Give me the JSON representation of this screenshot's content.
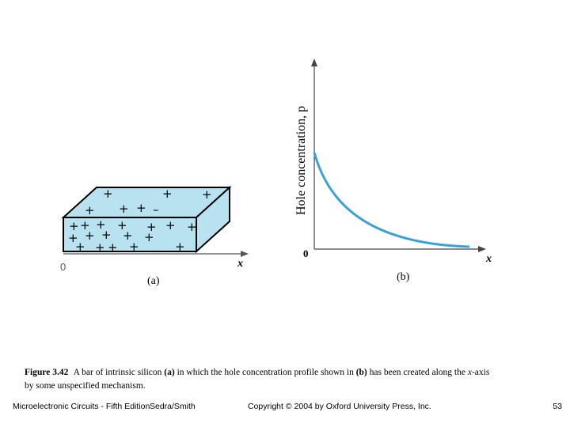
{
  "figure": {
    "panel_a": {
      "label": "(a)",
      "x_axis_label": "x",
      "origin_label": "0",
      "bar_color": "#b8e2f0",
      "carrier_symbol": "+"
    },
    "panel_b": {
      "label": "(b)",
      "x_axis_label": "x",
      "origin_label": "0",
      "y_axis_label": "Hole concentration, p",
      "curve_color": "#3aa0d8"
    }
  },
  "caption": {
    "figure_number": "Figure 3.42",
    "text_before_a": "A bar of intrinsic silicon",
    "ref_a": "(a)",
    "text_between": "in which the hole concentration profile shown in",
    "ref_b": "(b)",
    "text_line1_end": "has been created along the",
    "axis_var": "x",
    "text_line1_tail": "-axis",
    "text_line2": "by some unspecified mechanism."
  },
  "footer": {
    "book": "Microelectronic Circuits - Fifth Edition",
    "authors": "Sedra/Smith",
    "copyright": "Copyright © 2004 by Oxford University Press, Inc.",
    "page": "53"
  }
}
